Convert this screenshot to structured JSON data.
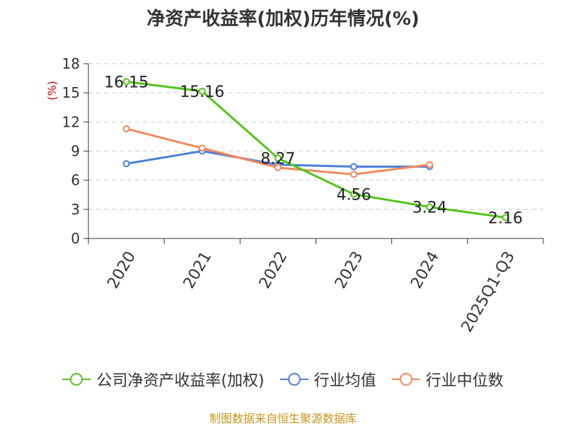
{
  "chart_data": {
    "type": "line",
    "title": "净资产收益率(加权)历年情况(%)",
    "ylabel": "(%)",
    "xlabel": "",
    "categories": [
      "2020",
      "2021",
      "2022",
      "2023",
      "2024",
      "2025Q1-Q3"
    ],
    "ylim": [
      0,
      18
    ],
    "yticks": [
      0,
      3,
      6,
      9,
      12,
      15,
      18
    ],
    "grid": true,
    "legend_position": "bottom",
    "series": [
      {
        "name": "公司净资产收益率(加权)",
        "color": "#52c41a",
        "values": [
          16.15,
          15.16,
          8.27,
          4.56,
          3.24,
          2.16
        ],
        "labels": [
          "16.15",
          "15.16",
          "8.27",
          "4.56",
          "3.24",
          "2.16"
        ]
      },
      {
        "name": "行业均值",
        "color": "#4a7fdc",
        "values": [
          7.7,
          9.0,
          7.6,
          7.4,
          7.4,
          null
        ]
      },
      {
        "name": "行业中位数",
        "color": "#f4875a",
        "values": [
          11.3,
          9.3,
          7.3,
          6.6,
          7.6,
          null
        ]
      }
    ]
  },
  "source": "制图数据来自恒生聚源数据库"
}
